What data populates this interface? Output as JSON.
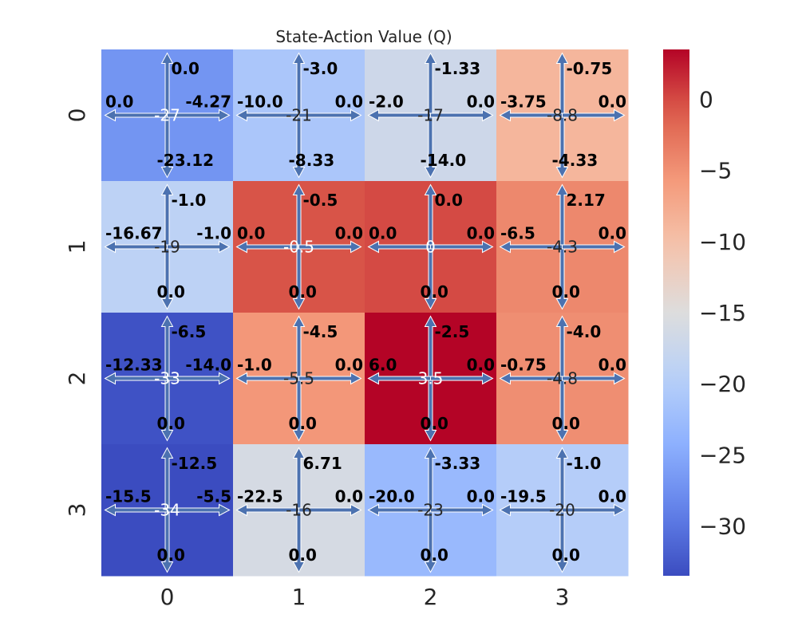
{
  "chart_data": {
    "type": "heatmap",
    "title": "State-Action Value (Q)",
    "xlabel": "",
    "ylabel": "",
    "x_tick_labels": [
      "0",
      "1",
      "2",
      "3"
    ],
    "y_tick_labels": [
      "0",
      "1",
      "2",
      "3"
    ],
    "colormap": "coolwarm",
    "vmin": -33.5,
    "vmax": 3.5,
    "colorbar_ticks": [
      0,
      -5,
      -10,
      -15,
      -20,
      -25,
      -30
    ],
    "colorbar_tick_labels": [
      "0",
      "−5",
      "−10",
      "−15",
      "−20",
      "−25",
      "−30"
    ],
    "cells": [
      [
        {
          "value": -27.0,
          "label": "-27",
          "actions": {
            "up": "0.0",
            "left": "0.0",
            "right": "-4.27",
            "down": "-23.12"
          }
        },
        {
          "value": -21.0,
          "label": "-21",
          "actions": {
            "up": "-3.0",
            "left": "-10.0",
            "right": "0.0",
            "down": "-8.33"
          }
        },
        {
          "value": -17.0,
          "label": "-17",
          "actions": {
            "up": "-1.33",
            "left": "-2.0",
            "right": "0.0",
            "down": "-14.0"
          }
        },
        {
          "value": -8.8,
          "label": "-8.8",
          "actions": {
            "up": "-0.75",
            "left": "-3.75",
            "right": "0.0",
            "down": "-4.33"
          }
        }
      ],
      [
        {
          "value": -19.0,
          "label": "-19",
          "actions": {
            "up": "-1.0",
            "left": "-16.67",
            "right": "-1.0",
            "down": "0.0"
          }
        },
        {
          "value": -0.5,
          "label": "-0.5",
          "actions": {
            "up": "-0.5",
            "left": "0.0",
            "right": "0.0",
            "down": "0.0"
          }
        },
        {
          "value": 0.0,
          "label": "0",
          "actions": {
            "up": "0.0",
            "left": "0.0",
            "right": "0.0",
            "down": "0.0"
          }
        },
        {
          "value": -4.3,
          "label": "-4.3",
          "actions": {
            "up": "2.17",
            "left": "-6.5",
            "right": "0.0",
            "down": "0.0"
          }
        }
      ],
      [
        {
          "value": -33.0,
          "label": "-33",
          "actions": {
            "up": "-6.5",
            "left": "-12.33",
            "right": "-14.0",
            "down": "0.0"
          }
        },
        {
          "value": -5.5,
          "label": "-5.5",
          "actions": {
            "up": "-4.5",
            "left": "-1.0",
            "right": "0.0",
            "down": "0.0"
          }
        },
        {
          "value": 3.5,
          "label": "3.5",
          "actions": {
            "up": "-2.5",
            "left": "6.0",
            "right": "0.0",
            "down": "0.0"
          }
        },
        {
          "value": -4.8,
          "label": "-4.8",
          "actions": {
            "up": "-4.0",
            "left": "-0.75",
            "right": "0.0",
            "down": "0.0"
          }
        }
      ],
      [
        {
          "value": -34.0,
          "label": "-34",
          "actions": {
            "up": "-12.5",
            "left": "-15.5",
            "right": "-5.5",
            "down": "0.0"
          }
        },
        {
          "value": -16.0,
          "label": "-16",
          "actions": {
            "up": "6.71",
            "left": "-22.5",
            "right": "0.0",
            "down": "0.0"
          }
        },
        {
          "value": -23.0,
          "label": "-23",
          "actions": {
            "up": "-3.33",
            "left": "-20.0",
            "right": "0.0",
            "down": "0.0"
          }
        },
        {
          "value": -20.0,
          "label": "-20",
          "actions": {
            "up": "-1.0",
            "left": "-19.5",
            "right": "0.0",
            "down": "0.0"
          }
        }
      ]
    ]
  }
}
